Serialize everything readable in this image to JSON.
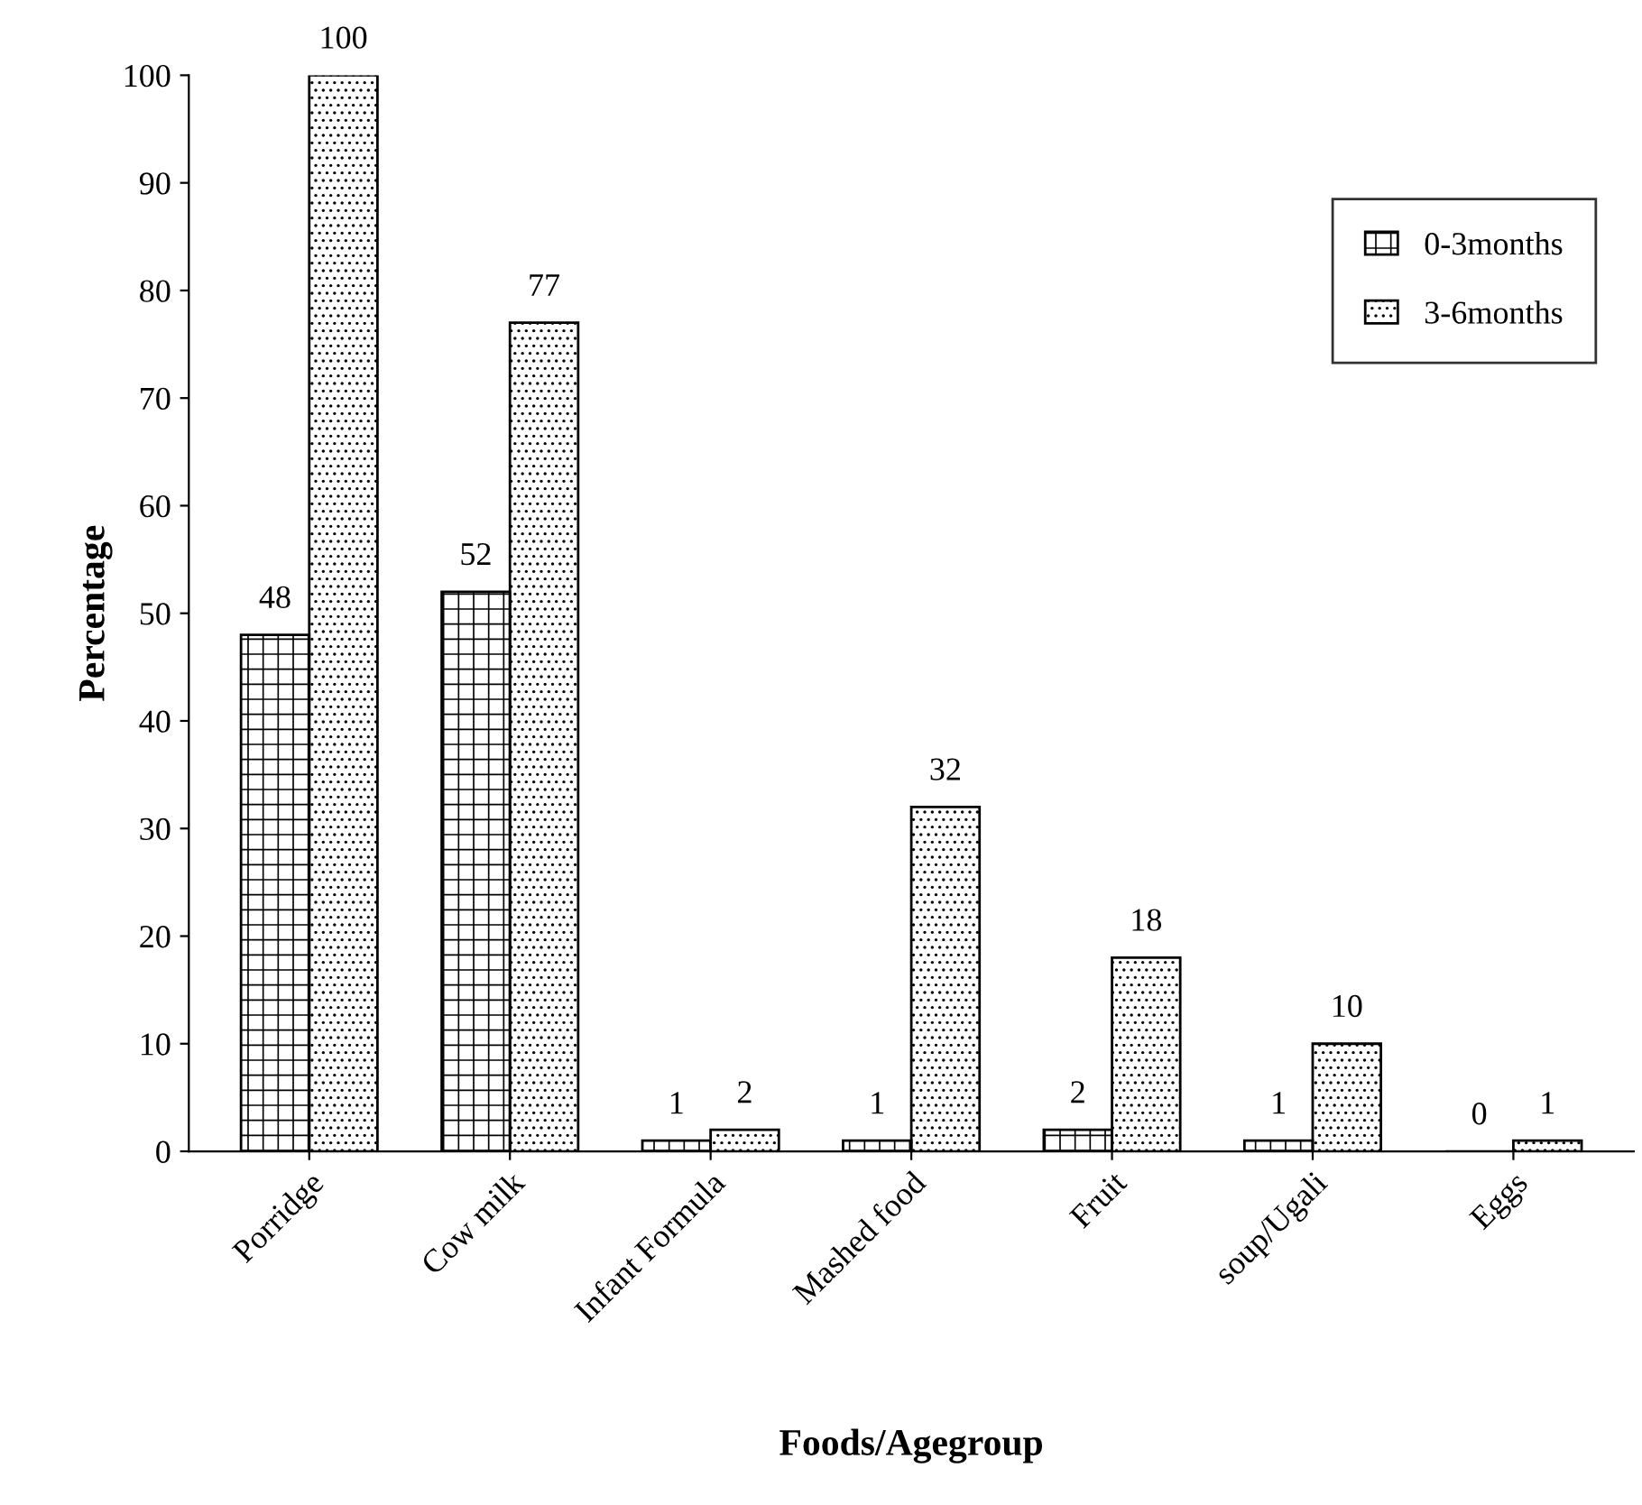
{
  "chart_data": {
    "type": "bar",
    "xlabel": "Foods/Agegroup",
    "ylabel": "Percentage",
    "categories": [
      "Porridge",
      "Cow milk",
      "Infant Formula",
      "Mashed food",
      "Fruit",
      "soup/Ugali",
      "Eggs"
    ],
    "series": [
      {
        "name": "0-3months",
        "color": "#000000",
        "values": [
          48,
          52,
          1,
          1,
          2,
          1,
          0
        ]
      },
      {
        "name": "3-6months",
        "color": "#000000",
        "values": [
          100,
          77,
          2,
          32,
          18,
          10,
          1
        ]
      }
    ],
    "ylim": [
      0,
      100
    ],
    "yticks": [
      0,
      10,
      20,
      30,
      40,
      50,
      60,
      70,
      80,
      90,
      100
    ],
    "grid": false,
    "legend": "top right",
    "data_labels": true
  }
}
